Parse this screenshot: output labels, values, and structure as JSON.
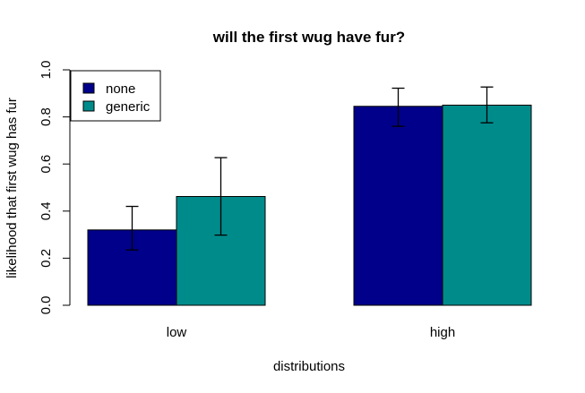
{
  "chart_data": {
    "type": "bar",
    "title": "will the first wug have fur?",
    "xlabel": "distributions",
    "ylabel": "likelihood that first wug has fur",
    "categories": [
      "low",
      "high"
    ],
    "ylim": [
      0,
      1
    ],
    "yticks": [
      "0.0",
      "0.2",
      "0.4",
      "0.6",
      "0.8",
      "1.0"
    ],
    "series": [
      {
        "name": "none",
        "color": "#00008b",
        "values": [
          0.32,
          0.845
        ],
        "err_low": [
          0.235,
          0.76
        ],
        "err_high": [
          0.42,
          0.922
        ]
      },
      {
        "name": "generic",
        "color": "#008b8b",
        "values": [
          0.462,
          0.85
        ],
        "err_low": [
          0.298,
          0.775
        ],
        "err_high": [
          0.627,
          0.927
        ]
      }
    ],
    "legend_position": "top-left",
    "grid": false
  }
}
